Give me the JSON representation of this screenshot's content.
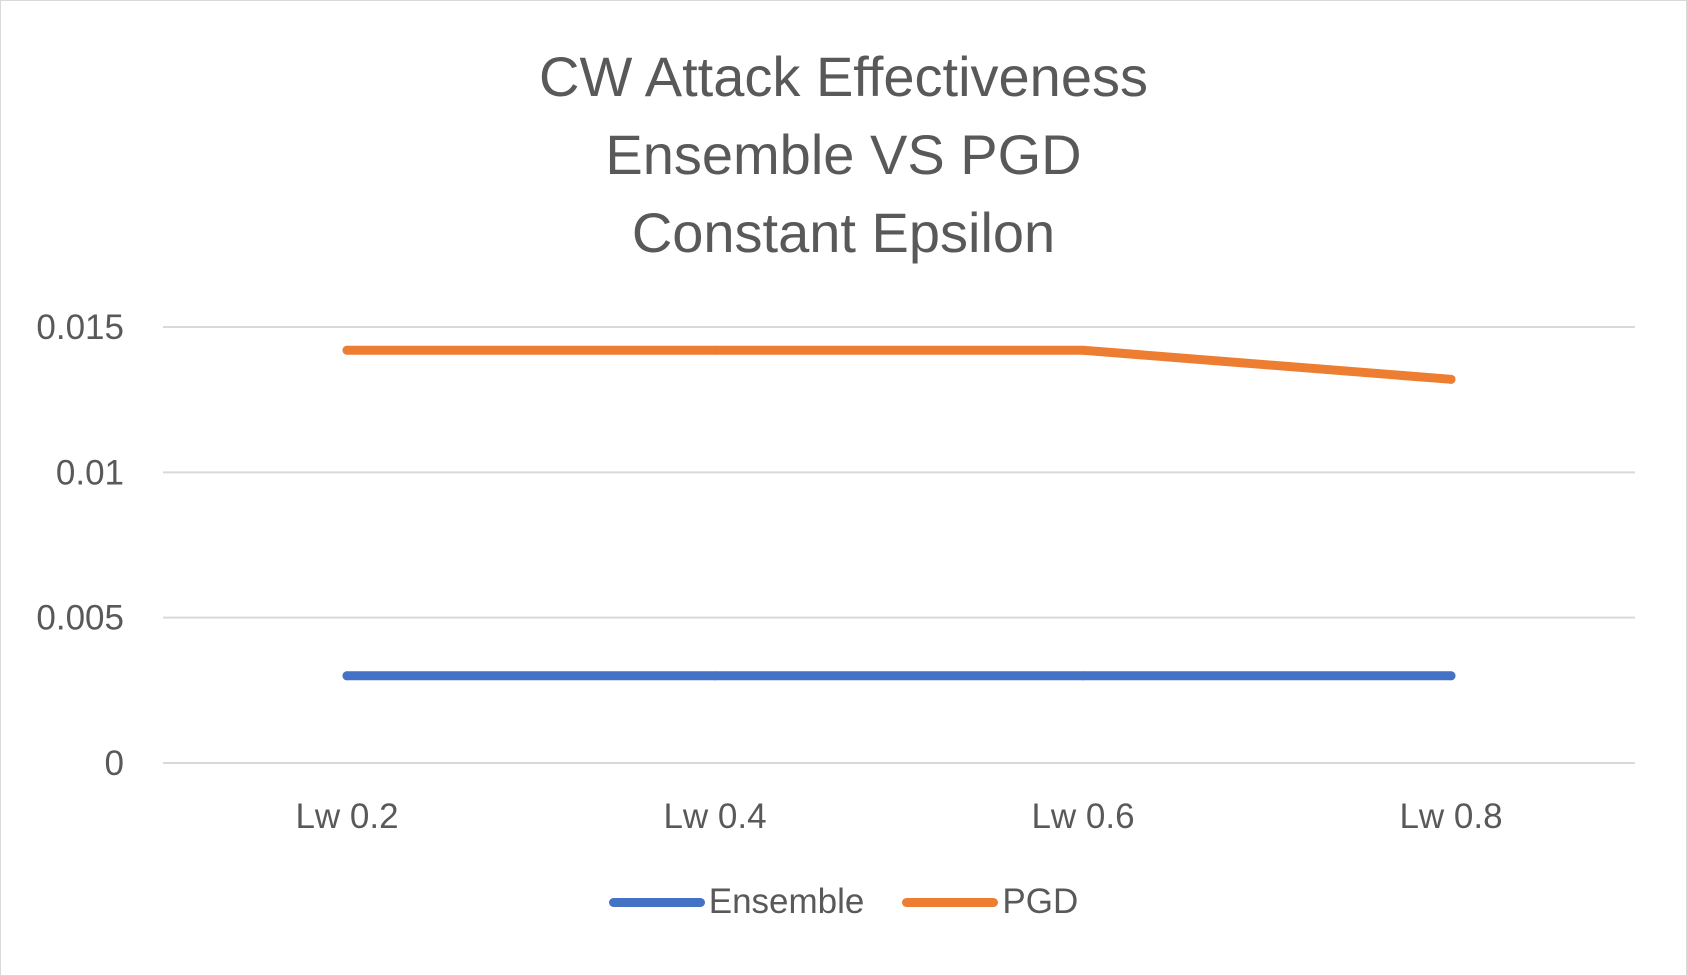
{
  "chart_data": {
    "type": "line",
    "title_lines": [
      "CW Attack Effectiveness",
      "Ensemble VS PGD",
      "Constant Epsilon"
    ],
    "categories": [
      "Lw 0.2",
      "Lw 0.4",
      "Lw 0.6",
      "Lw 0.8"
    ],
    "series": [
      {
        "name": "Ensemble",
        "color": "#4472C4",
        "values": [
          0.003,
          0.003,
          0.003,
          0.003
        ]
      },
      {
        "name": "PGD",
        "color": "#ED7D31",
        "values": [
          0.0142,
          0.0142,
          0.0142,
          0.0132
        ]
      }
    ],
    "ylim": [
      0,
      0.015
    ],
    "yticks": [
      "0",
      "0.005",
      "0.01",
      "0.015"
    ],
    "xlabel": "",
    "ylabel": "",
    "grid": true,
    "legend_position": "bottom"
  }
}
